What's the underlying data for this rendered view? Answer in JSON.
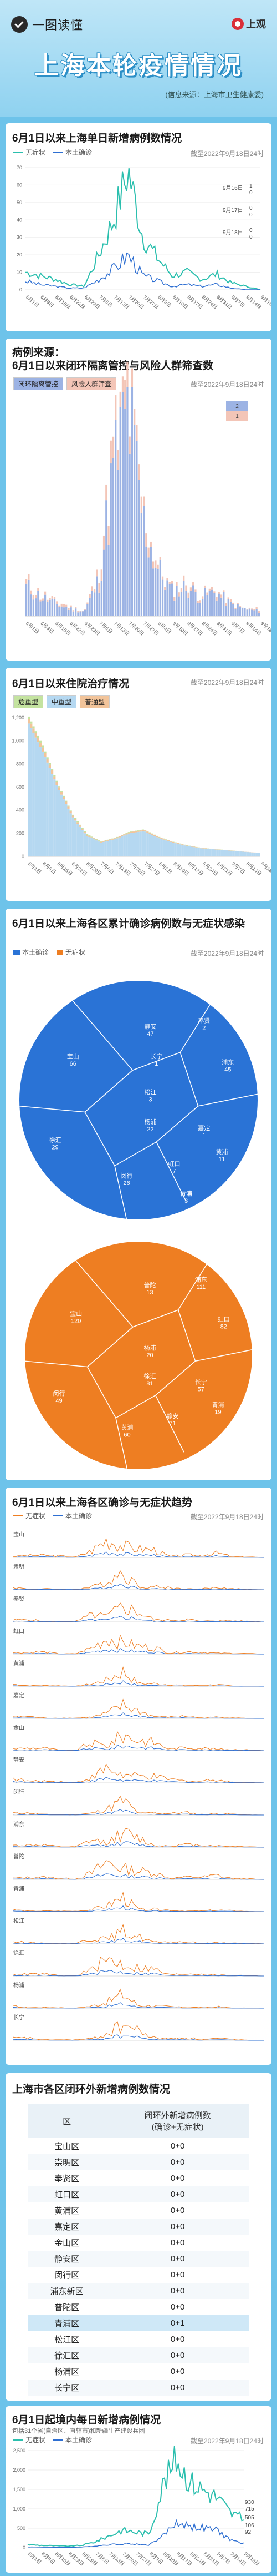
{
  "header": {
    "brand": "一图读懂",
    "logo": "上观",
    "title": "上海本轮疫情情况",
    "source": "(信息来源：上海市卫生健康委)"
  },
  "colors": {
    "asymptomatic": "#2bbfae",
    "confirmed": "#2e6fd2",
    "orange": "#ee7e22",
    "blue_area": "#2a73d6",
    "bar_blue": "#9cb3e4"
  },
  "section1": {
    "title": "6月1日以来上海单日新增病例数情况",
    "legend": [
      "无症状",
      "本土确诊"
    ],
    "stamp": "截至2022年9月18日24时",
    "callouts": [
      {
        "date": "9月16日",
        "a": "1",
        "c": "0"
      },
      {
        "date": "9月17日",
        "a": "0",
        "c": "0"
      },
      {
        "date": "9月18日",
        "a": "0",
        "c": "0"
      }
    ]
  },
  "section2": {
    "title": "病例来源：",
    "subtitle": "6月1日以来闭环隔离管控与风险人群筛查数",
    "legend": [
      "闭环隔离管控",
      "风险人群筛查"
    ],
    "stamp": "截至2022年9月18日24时",
    "callouts": [
      "2",
      "1"
    ]
  },
  "section3": {
    "title": "6月1日以来住院治疗情况",
    "legend": [
      "危重型",
      "中重型",
      "普通型"
    ],
    "stamp": "截至2022年9月18日24时"
  },
  "section4": {
    "title": "6月1日以来上海各区累计确诊病例数与无症状感染",
    "legend": [
      "本土确诊",
      "无症状"
    ],
    "stamp": "截至2022年9月18日24时",
    "confirmed_districts": [
      {
        "name": "静安",
        "value": "47"
      },
      {
        "name": "奉贤",
        "value": "2"
      },
      {
        "name": "宝山",
        "value": "66"
      },
      {
        "name": "松江",
        "value": "3"
      },
      {
        "name": "浦东",
        "value": "45"
      },
      {
        "name": "杨浦",
        "value": "22"
      },
      {
        "name": "徐汇",
        "value": "29"
      },
      {
        "name": "闵行",
        "value": "26"
      },
      {
        "name": "虹口",
        "value": "7"
      },
      {
        "name": "黄浦",
        "value": "11"
      },
      {
        "name": "嘉定",
        "value": "1"
      },
      {
        "name": "青浦",
        "value": "3"
      },
      {
        "name": "长宁",
        "value": "1"
      }
    ],
    "asymptomatic_districts": [
      {
        "name": "普陀",
        "value": "13"
      },
      {
        "name": "浦东",
        "value": "111"
      },
      {
        "name": "宝山",
        "value": "120"
      },
      {
        "name": "杨浦",
        "value": "20"
      },
      {
        "name": "虹口",
        "value": "82"
      },
      {
        "name": "徐汇",
        "value": "81"
      },
      {
        "name": "闵行",
        "value": "49"
      },
      {
        "name": "黄浦",
        "value": "60"
      },
      {
        "name": "静安",
        "value": "71"
      },
      {
        "name": "青浦",
        "value": "19"
      },
      {
        "name": "长宁",
        "value": "57"
      }
    ]
  },
  "section5": {
    "title": "6月1日以来上海各区确诊与无症状趋势",
    "legend": [
      "无症状",
      "本土确诊"
    ],
    "stamp": "截至2022年9月18日24时",
    "panels": [
      "宝山",
      "崇明",
      "奉贤",
      "虹口",
      "黄浦",
      "嘉定",
      "金山",
      "静安",
      "闵行",
      "浦东",
      "普陀",
      "青浦",
      "松江",
      "徐汇",
      "杨浦",
      "长宁"
    ]
  },
  "section6": {
    "title": "上海市各区闭环外新增病例数情况",
    "col_district": "区",
    "col_value": "闭环外新增病例数",
    "col_value_sub": "(确诊+无症状)",
    "rows": [
      {
        "district": "宝山区",
        "value": "0+0"
      },
      {
        "district": "崇明区",
        "value": "0+0"
      },
      {
        "district": "奉贤区",
        "value": "0+0"
      },
      {
        "district": "虹口区",
        "value": "0+0"
      },
      {
        "district": "黄浦区",
        "value": "0+0"
      },
      {
        "district": "嘉定区",
        "value": "0+0"
      },
      {
        "district": "金山区",
        "value": "0+0"
      },
      {
        "district": "静安区",
        "value": "0+0"
      },
      {
        "district": "闵行区",
        "value": "0+0"
      },
      {
        "district": "浦东新区",
        "value": "0+0"
      },
      {
        "district": "普陀区",
        "value": "0+0"
      },
      {
        "district": "青浦区",
        "value": "0+1"
      },
      {
        "district": "松江区",
        "value": "0+0"
      },
      {
        "district": "徐汇区",
        "value": "0+0"
      },
      {
        "district": "杨浦区",
        "value": "0+0"
      },
      {
        "district": "长宁区",
        "value": "0+0"
      }
    ]
  },
  "section7": {
    "title": "6月1日起境内每日新增病例情况",
    "subtitle": "包括31个省(自治区、直辖市)和新疆生产建设兵团",
    "legend": [
      "无症状",
      "本土确诊"
    ],
    "stamp": "截至2022年9月18日24时",
    "yticks": [
      "2,500",
      "2,000",
      "1,500",
      "1,000",
      "500",
      "0"
    ],
    "end_labels": [
      "930",
      "715",
      "505",
      "106",
      "92"
    ]
  },
  "chart_data": [
    {
      "type": "line",
      "title": "6月1日以来上海单日新增病例数情况",
      "x": [
        "6月1日",
        "6月8日",
        "6月15日",
        "6月22日",
        "6月29日",
        "7月6日",
        "7月13日",
        "7月20日",
        "7月27日",
        "8月3日",
        "8月10日",
        "8月17日",
        "8月24日",
        "8月31日",
        "9月7日",
        "9月14日",
        "9月18日"
      ],
      "ylim": [
        0,
        70
      ],
      "series": [
        {
          "name": "无症状",
          "values": [
            10,
            8,
            6,
            3,
            2,
            20,
            40,
            68,
            30,
            18,
            8,
            10,
            6,
            9,
            4,
            2,
            0
          ]
        },
        {
          "name": "本土确诊",
          "values": [
            5,
            3,
            2,
            1,
            1,
            6,
            12,
            20,
            8,
            5,
            2,
            3,
            2,
            3,
            1,
            0,
            0
          ]
        }
      ]
    },
    {
      "type": "bar",
      "title": "6月1日以来闭环隔离管控与风险人群筛查数",
      "x": [
        "6月1日",
        "6月8日",
        "6月15日",
        "6月22日",
        "6月29日",
        "7月6日",
        "7月13日",
        "7月20日",
        "7月27日",
        "8月3日",
        "8月10日",
        "8月17日",
        "8月24日",
        "8月31日",
        "9月7日",
        "9月14日",
        "9月18日"
      ],
      "series": [
        {
          "name": "闭环隔离管控",
          "values": [
            12,
            8,
            5,
            3,
            2,
            15,
            60,
            85,
            40,
            20,
            10,
            12,
            8,
            10,
            5,
            3,
            2
          ]
        },
        {
          "name": "风险人群筛查",
          "values": [
            2,
            1,
            1,
            1,
            0,
            3,
            8,
            10,
            5,
            2,
            1,
            2,
            1,
            1,
            1,
            0,
            1
          ]
        }
      ]
    },
    {
      "type": "area",
      "title": "6月1日以来住院治疗情况",
      "x": [
        "6月1日",
        "6月8日",
        "6月15日",
        "6月22日",
        "6月29日",
        "7月6日",
        "7月13日",
        "7月20日",
        "7月27日",
        "8月3日",
        "8月10日",
        "8月17日",
        "8月24日",
        "8月31日",
        "9月7日",
        "9月14日",
        "9月18日"
      ],
      "ylim": [
        0,
        1200
      ],
      "series": [
        {
          "name": "普通型",
          "values": [
            1150,
            900,
            600,
            350,
            180,
            120,
            150,
            200,
            220,
            160,
            120,
            90,
            70,
            60,
            50,
            40,
            30
          ]
        },
        {
          "name": "中重型",
          "values": [
            40,
            35,
            25,
            15,
            10,
            6,
            8,
            10,
            10,
            8,
            6,
            4,
            3,
            2,
            2,
            1,
            1
          ]
        },
        {
          "name": "危重型",
          "values": [
            20,
            15,
            10,
            8,
            5,
            3,
            3,
            4,
            4,
            3,
            2,
            2,
            1,
            1,
            1,
            0,
            0
          ]
        }
      ]
    },
    {
      "type": "line",
      "title": "6月1日起境内每日新增病例情况",
      "x": [
        "6月1日",
        "6月8日",
        "6月15日",
        "6月22日",
        "6月29日",
        "7月6日",
        "7月13日",
        "7月20日",
        "7月27日",
        "8月3日",
        "8月10日",
        "8月17日",
        "8月24日",
        "8月31日",
        "9月7日",
        "9月14日",
        "9月18日"
      ],
      "ylim": [
        0,
        2500
      ],
      "series": [
        {
          "name": "无症状",
          "values": [
            80,
            60,
            50,
            40,
            60,
            150,
            300,
            450,
            400,
            350,
            1600,
            2300,
            1700,
            1500,
            1300,
            900,
            715
          ]
        },
        {
          "name": "本土确诊",
          "values": [
            20,
            15,
            10,
            10,
            15,
            40,
            80,
            100,
            90,
            70,
            300,
            650,
            550,
            500,
            450,
            200,
            106
          ]
        }
      ]
    }
  ]
}
